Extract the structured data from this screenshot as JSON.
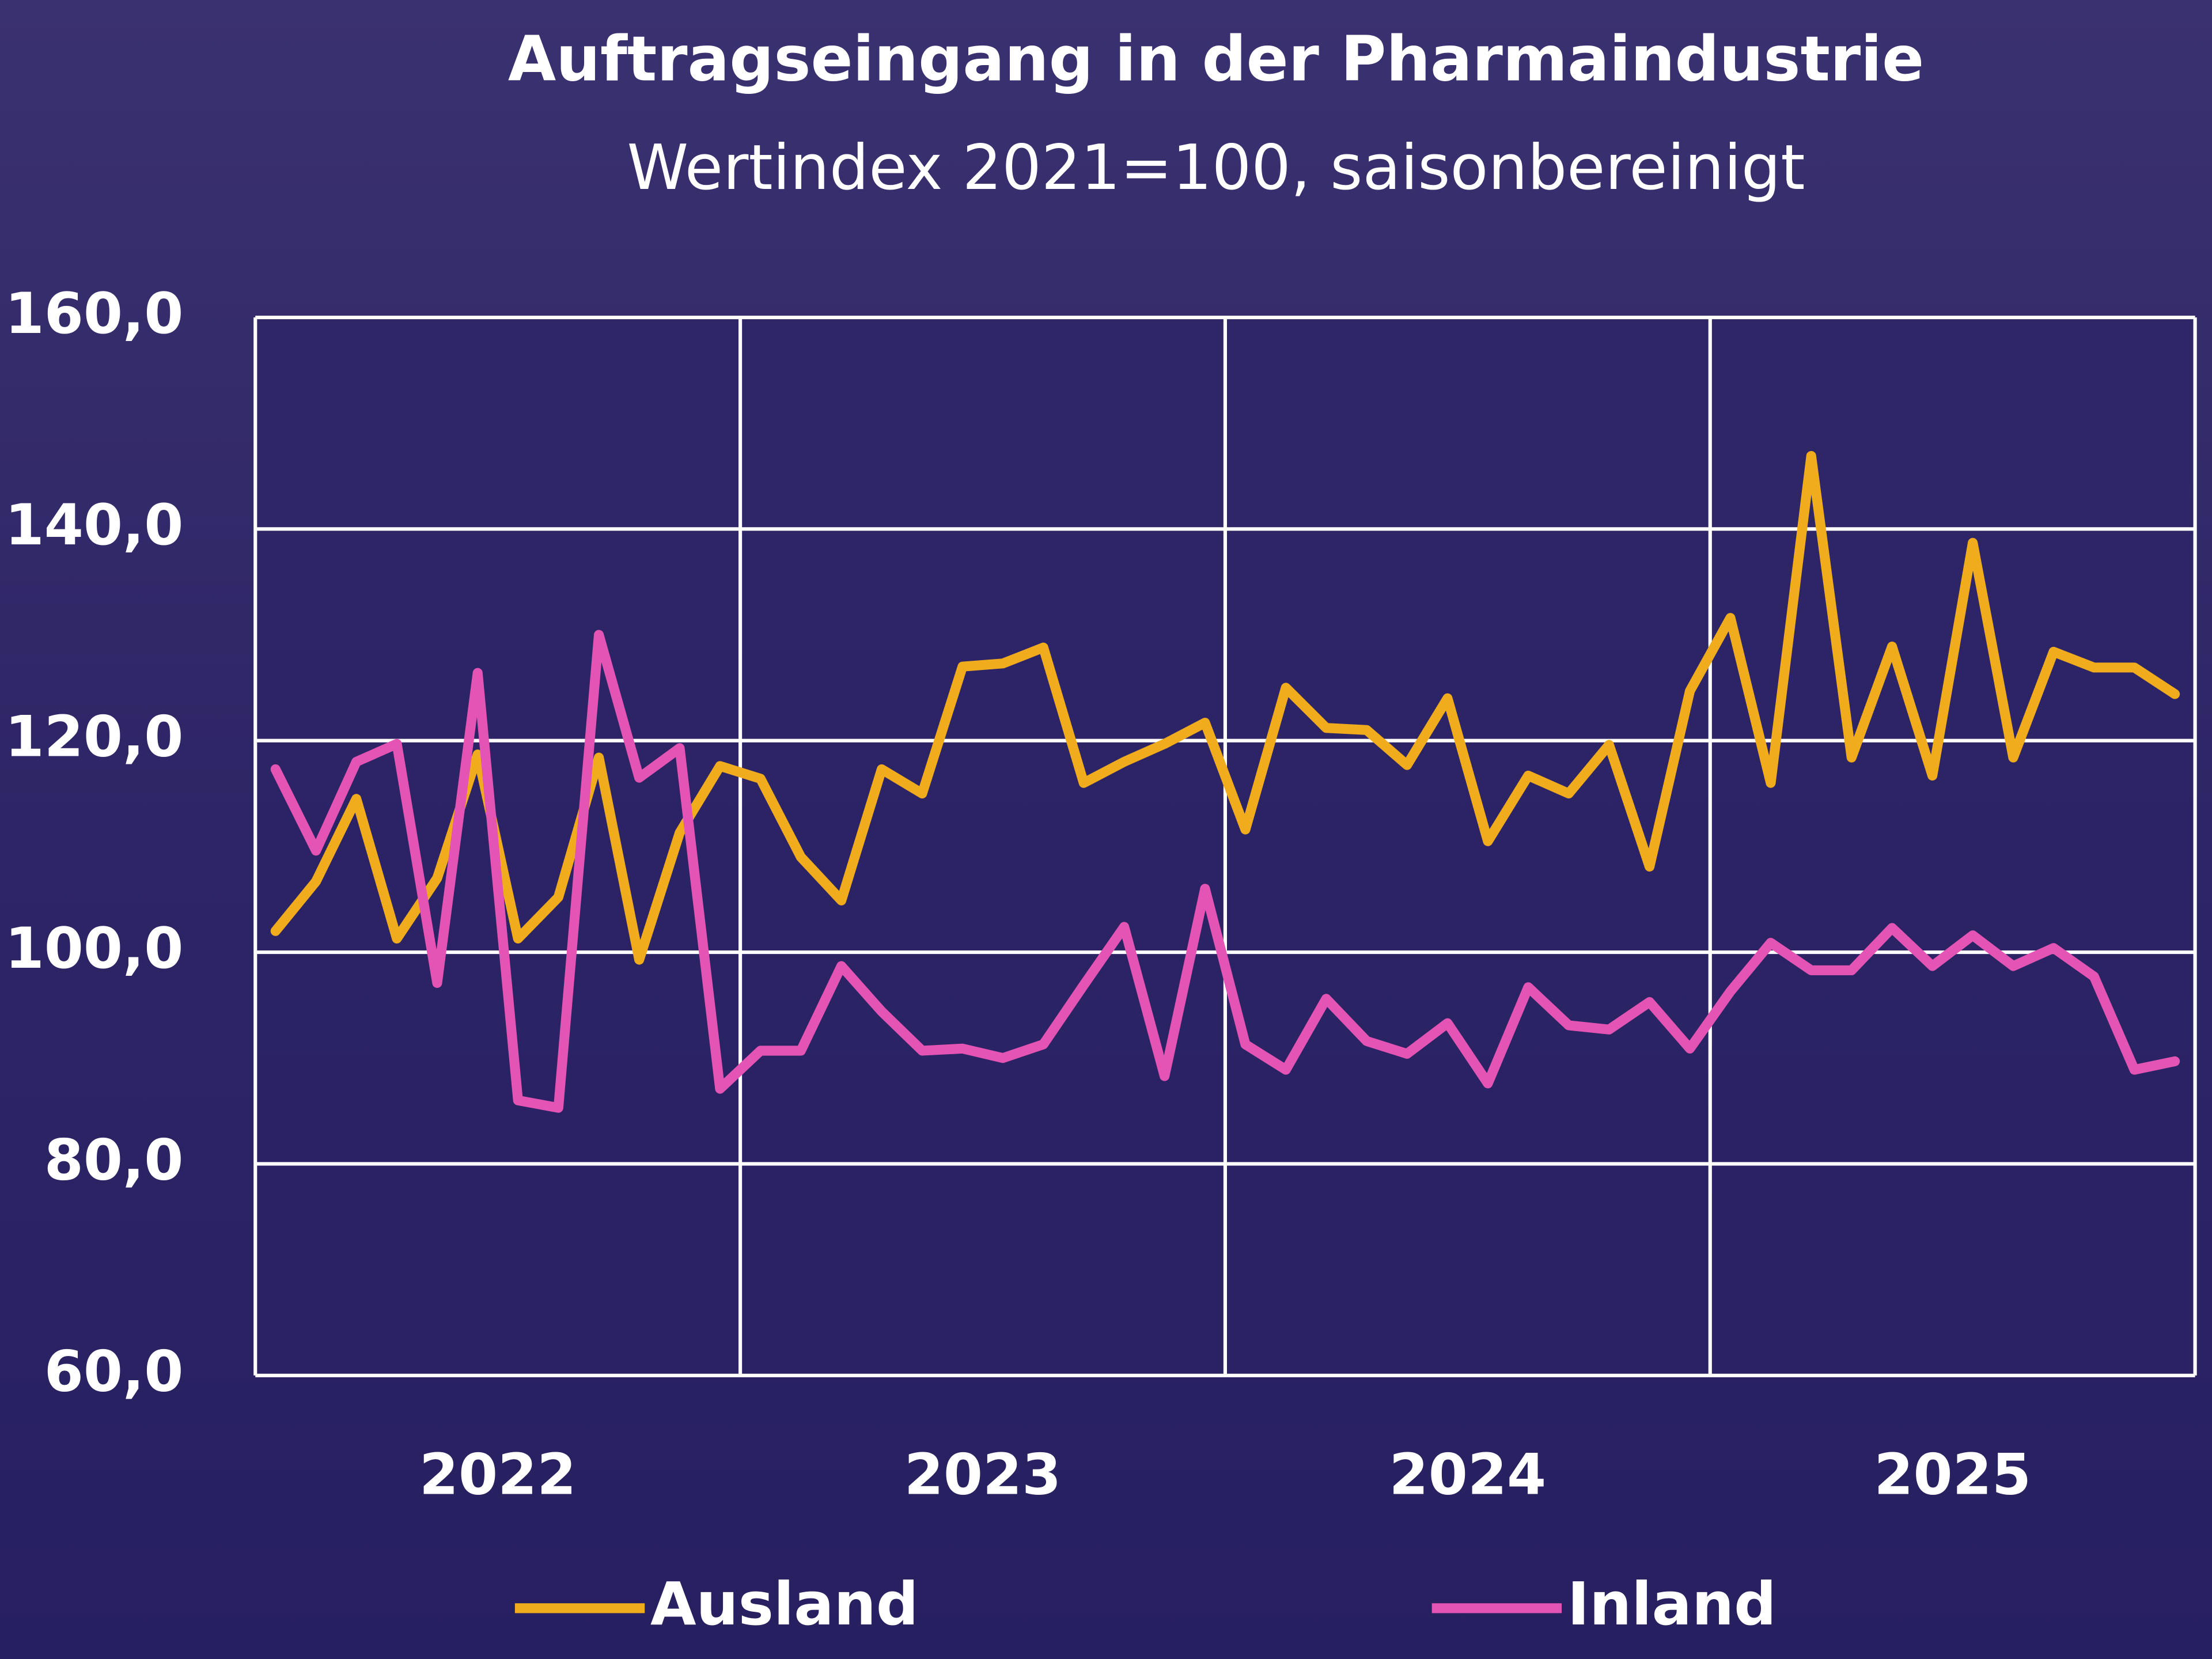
{
  "chart_data": {
    "type": "line",
    "title": "Auftragseingang in der Pharmaindustrie",
    "subtitle": "Wertindex 2021=100, saisonbereinigt",
    "categories": [
      "2022",
      "2023",
      "2024",
      "2025"
    ],
    "ylim": [
      60,
      160
    ],
    "yticks": [
      {
        "value": 60,
        "label": "60,0"
      },
      {
        "value": 80,
        "label": "80,0"
      },
      {
        "value": 100,
        "label": "100,0"
      },
      {
        "value": 120,
        "label": "120,0"
      },
      {
        "value": 140,
        "label": "140,0"
      },
      {
        "value": 160,
        "label": "160,0"
      }
    ],
    "grid": true,
    "legend": "bottom",
    "series": [
      {
        "name": "Ausland",
        "color": "#f0ac1c",
        "values": [
          [
            102,
            106.7,
            114.5,
            101.3,
            107,
            118.7,
            101.3,
            105.2,
            118.4,
            99.3,
            111.3,
            117.6
          ],
          [
            116.4,
            109,
            104.9,
            117.3,
            115,
            127,
            127.3,
            128.8,
            116,
            118,
            119.7,
            121.7
          ],
          [
            111.6,
            125,
            121.2,
            121,
            117.7,
            124,
            110.5,
            116.7,
            115,
            119.6,
            108.1,
            124.7
          ],
          [
            131.6,
            116,
            146.9,
            118.4,
            128.9,
            116.7,
            138.7,
            118.4,
            128.4,
            126.9,
            126.9,
            124.4
          ]
        ]
      },
      {
        "name": "Inland",
        "color": "#e454b4",
        "values": [
          [
            117.3,
            109.6,
            118,
            119.7,
            97.1,
            126.4,
            86,
            85.3,
            130,
            116.5,
            119.3,
            87.1
          ],
          [
            90.7,
            90.7,
            98.7,
            94.4,
            90.7,
            90.9,
            90,
            91.3,
            96.9,
            102.4,
            88.3,
            106
          ],
          [
            91.3,
            88.9,
            95.6,
            91.6,
            90.4,
            93.3,
            87.6,
            96.7,
            93.1,
            92.7,
            95.3,
            90.9
          ],
          [
            96.3,
            100.9,
            98.3,
            98.3,
            102.3,
            98.7,
            101.6,
            98.7,
            100.4,
            97.7,
            88.9,
            89.7
          ]
        ]
      }
    ]
  }
}
